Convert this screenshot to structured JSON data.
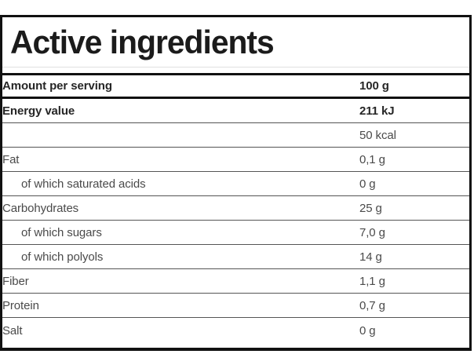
{
  "panel": {
    "title": "Active ingredients"
  },
  "table": {
    "header": {
      "label": "Amount per serving",
      "value": "100 g"
    },
    "rows": [
      {
        "label": "Energy value",
        "value": "211 kJ",
        "bold": true,
        "indent": false
      },
      {
        "label": "",
        "value": "50 kcal",
        "bold": false,
        "indent": false
      },
      {
        "label": "Fat",
        "value": "0,1 g",
        "bold": false,
        "indent": false
      },
      {
        "label": "of which saturated acids",
        "value": "0 g",
        "bold": false,
        "indent": true
      },
      {
        "label": "Carbohydrates",
        "value": "25 g",
        "bold": false,
        "indent": false
      },
      {
        "label": "of which sugars",
        "value": "7,0 g",
        "bold": false,
        "indent": true
      },
      {
        "label": "of which polyols",
        "value": "14 g",
        "bold": false,
        "indent": true
      },
      {
        "label": "Fiber",
        "value": "1,1 g",
        "bold": false,
        "indent": false
      },
      {
        "label": "Protein",
        "value": "0,7 g",
        "bold": false,
        "indent": false
      },
      {
        "label": "Salt",
        "value": "0 g",
        "bold": false,
        "indent": false
      }
    ]
  },
  "colors": {
    "border_strong": "#111111",
    "border_row": "#555555",
    "border_title_divider": "#e0e0e0",
    "text_regular": "#4a4a4a",
    "text_bold": "#262626",
    "background": "#ffffff"
  }
}
